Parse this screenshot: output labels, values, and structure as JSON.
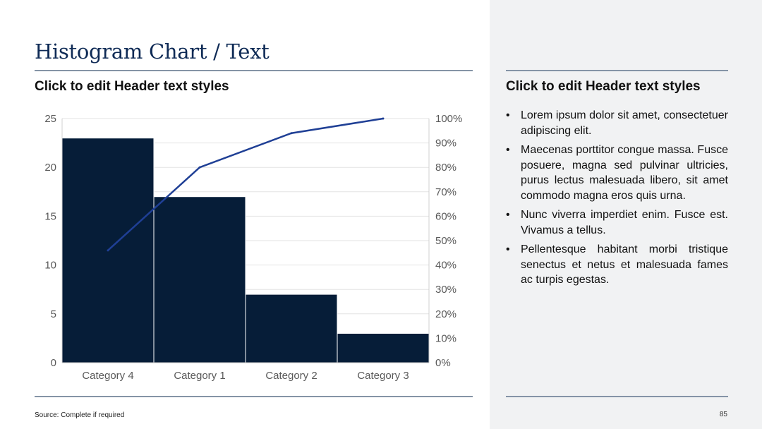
{
  "slide": {
    "title": "Histogram Chart / Text",
    "left_header": "Click to edit Header text styles",
    "right_header": "Click to edit Header text styles",
    "source": "Source: Complete if required",
    "page_number": "85"
  },
  "bullets": [
    "Lorem ipsum dolor sit amet, consectetuer adipiscing elit.",
    " Maecenas porttitor congue massa. Fusce posuere, magna sed pulvinar ultricies, purus lectus malesuada libero, sit amet commodo magna eros quis urna.",
    "Nunc viverra imperdiet enim. Fusce est. Vivamus a tellus.",
    "Pellentesque habitant morbi tristique senectus et netus et malesuada fames ac turpis egestas."
  ],
  "bullet_glyph": "•",
  "colors": {
    "bar": "#061d38",
    "line": "#1f3f95",
    "title": "#0e2a55",
    "rule": "#8594a6",
    "panel": "#f1f2f3"
  },
  "chart_data": {
    "type": "bar",
    "categories": [
      "Category 4",
      "Category 1",
      "Category 2",
      "Category 3"
    ],
    "values": [
      23,
      17,
      7,
      3
    ],
    "ylim": [
      0,
      25
    ],
    "yticks": [
      0,
      5,
      10,
      15,
      20,
      25
    ],
    "cumulative_percent": [
      46,
      80,
      94,
      100
    ],
    "y2lim": [
      0,
      100
    ],
    "y2ticks": [
      "0%",
      "10%",
      "20%",
      "30%",
      "40%",
      "50%",
      "60%",
      "70%",
      "80%",
      "90%",
      "100%"
    ],
    "grid": true,
    "legend": "none"
  }
}
